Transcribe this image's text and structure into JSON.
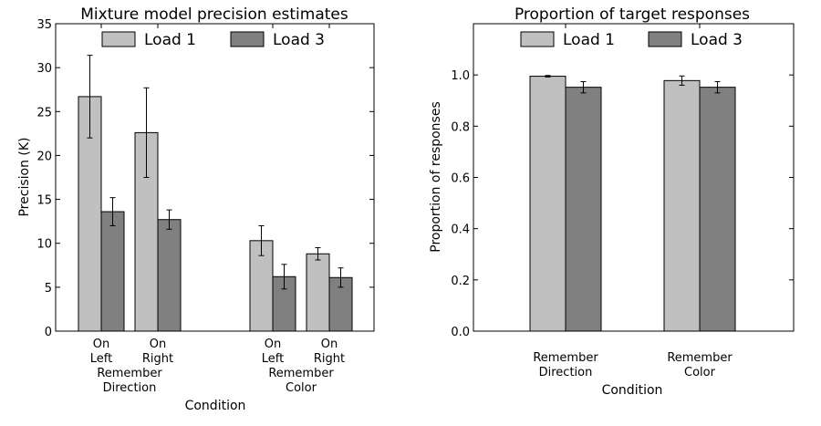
{
  "chart_data": [
    {
      "type": "bar",
      "title": "Mixture model precision estimates",
      "xlabel": "Condition",
      "ylabel": "Precision (K)",
      "ylim": [
        0,
        35
      ],
      "yticks": [
        "0",
        "5",
        "10",
        "15",
        "20",
        "25",
        "30",
        "35"
      ],
      "groups": [
        {
          "label": "Remember\nDirection",
          "subcategories": [
            "On\nLeft",
            "On\nRight"
          ]
        },
        {
          "label": "Remember\nColor",
          "subcategories": [
            "On\nLeft",
            "On\nRight"
          ]
        }
      ],
      "categories": [
        "Remember Direction On Left",
        "Remember Direction On Right",
        "Remember Color On Left",
        "Remember Color On Right"
      ],
      "series": [
        {
          "name": "Load 1",
          "color": "#c0c0c0",
          "values": [
            26.7,
            22.6,
            10.3,
            8.8
          ],
          "err": [
            4.7,
            5.1,
            1.7,
            0.7
          ]
        },
        {
          "name": "Load 3",
          "color": "#808080",
          "values": [
            13.6,
            12.7,
            6.2,
            6.1
          ],
          "err": [
            1.6,
            1.1,
            1.4,
            1.1
          ]
        }
      ],
      "legend": "top-center",
      "grid": false
    },
    {
      "type": "bar",
      "title": "Proportion of target responses",
      "xlabel": "Condition",
      "ylabel": "Proportion of responses",
      "ylim": [
        0,
        1.2
      ],
      "yticks": [
        "0.0",
        "0.2",
        "0.4",
        "0.6",
        "0.8",
        "1.0"
      ],
      "categories": [
        "Remember\nDirection",
        "Remember\nColor"
      ],
      "series": [
        {
          "name": "Load 1",
          "color": "#c0c0c0",
          "values": [
            0.995,
            0.978
          ],
          "err": [
            0.003,
            0.018
          ]
        },
        {
          "name": "Load 3",
          "color": "#808080",
          "values": [
            0.952,
            0.952
          ],
          "err": [
            0.022,
            0.022
          ]
        }
      ],
      "legend": "top-center",
      "grid": false
    }
  ]
}
